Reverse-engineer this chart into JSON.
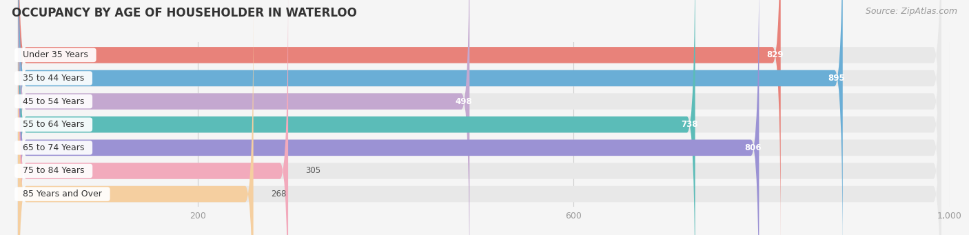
{
  "title": "OCCUPANCY BY AGE OF HOUSEHOLDER IN WATERLOO",
  "source": "Source: ZipAtlas.com",
  "categories": [
    "Under 35 Years",
    "35 to 44 Years",
    "45 to 54 Years",
    "55 to 64 Years",
    "65 to 74 Years",
    "75 to 84 Years",
    "85 Years and Over"
  ],
  "values": [
    829,
    895,
    498,
    738,
    806,
    305,
    268
  ],
  "bar_colors": [
    "#E8827A",
    "#6AAED6",
    "#C4A8D0",
    "#5BBCB8",
    "#9B92D4",
    "#F2AABC",
    "#F5CFA0"
  ],
  "bar_bg_color": "#E8E8E8",
  "background_color": "#F5F5F5",
  "xlim_max": 1000,
  "xticks": [
    200,
    600,
    1000
  ],
  "title_fontsize": 12,
  "label_fontsize": 9,
  "value_fontsize": 8.5,
  "source_fontsize": 9,
  "bar_height": 0.7,
  "title_color": "#333333",
  "value_color_inside": "#FFFFFF",
  "value_color_outside": "#555555",
  "value_threshold": 400,
  "grid_color": "#CCCCCC"
}
